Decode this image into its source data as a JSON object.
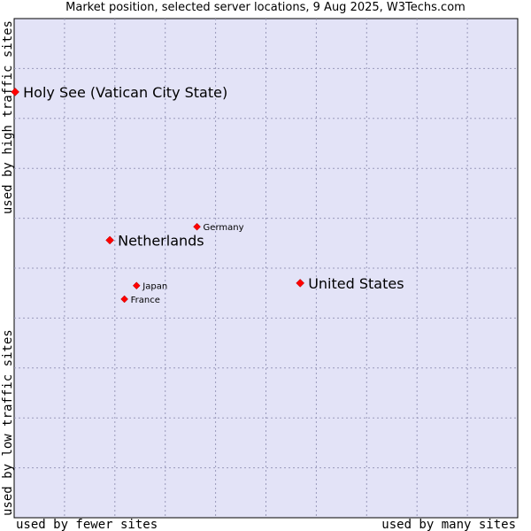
{
  "chart_data": {
    "type": "scatter",
    "title": "Market position, selected server locations, 9 Aug 2025, W3Techs.com",
    "xlabel_left": "used by fewer sites",
    "xlabel_right": "used by many sites",
    "ylabel_bottom": "used by low traffic sites",
    "ylabel_top": "used by high traffic sites",
    "xlim": [
      0,
      100
    ],
    "ylim": [
      0,
      100
    ],
    "grid": true,
    "background_color": "#e3e3f7",
    "grid_color": "#9999bb",
    "point_color": "#ff0000",
    "points": [
      {
        "name": "Holy See (Vatican City State)",
        "x": 0.2,
        "y": 85.3,
        "emphasis": "large"
      },
      {
        "name": "Netherlands",
        "x": 19.0,
        "y": 55.6,
        "emphasis": "large"
      },
      {
        "name": "Germany",
        "x": 36.3,
        "y": 58.3,
        "emphasis": "small"
      },
      {
        "name": "United States",
        "x": 56.8,
        "y": 47.0,
        "emphasis": "large"
      },
      {
        "name": "Japan",
        "x": 24.3,
        "y": 46.5,
        "emphasis": "small"
      },
      {
        "name": "France",
        "x": 21.9,
        "y": 43.8,
        "emphasis": "small"
      }
    ]
  }
}
